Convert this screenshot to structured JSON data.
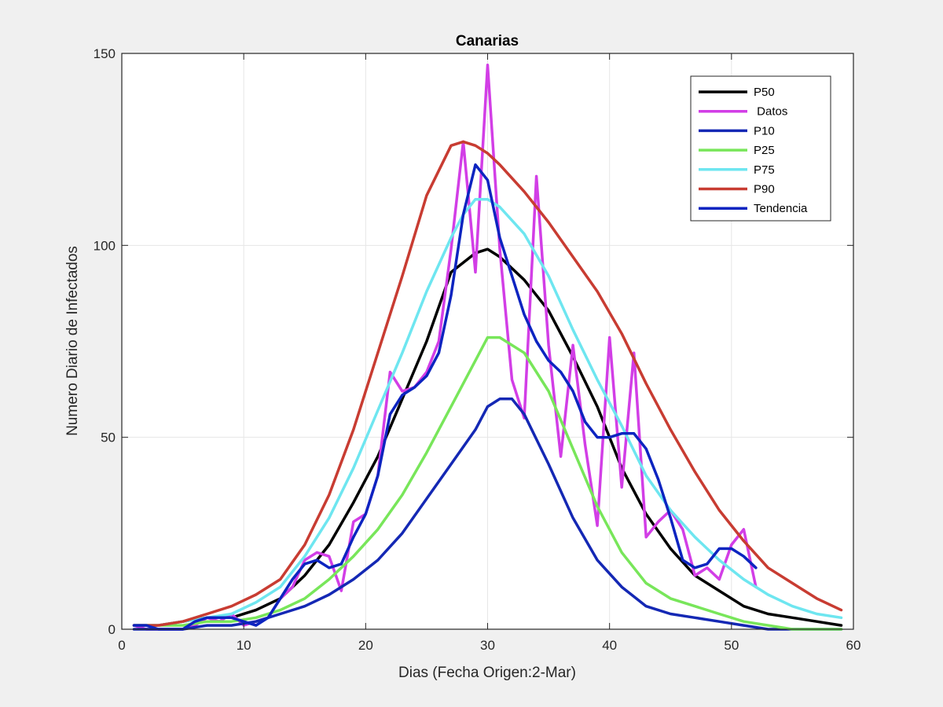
{
  "chart_data": {
    "type": "line",
    "title": "Canarias",
    "xlabel": "Dias (Fecha Origen:2-Mar)",
    "ylabel": "Numero Diario de Infectados",
    "xlim": [
      0,
      60
    ],
    "ylim": [
      0,
      150
    ],
    "xticks": [
      0,
      10,
      20,
      30,
      40,
      50,
      60
    ],
    "yticks": [
      0,
      50,
      100,
      150
    ],
    "xtick_labels": [
      "0",
      "10",
      "20",
      "30",
      "40",
      "50",
      "60"
    ],
    "ytick_labels": [
      "0",
      "50",
      "100",
      "150"
    ],
    "grid": true,
    "legend_position": "top-right",
    "series": [
      {
        "name": "P50",
        "color": "#000000",
        "x": [
          1,
          3,
          5,
          7,
          9,
          11,
          13,
          15,
          17,
          19,
          21,
          23,
          25,
          27,
          29,
          30,
          31,
          33,
          35,
          37,
          39,
          41,
          43,
          45,
          47,
          49,
          51,
          53,
          55,
          57,
          59
        ],
        "y": [
          1,
          1,
          2,
          3,
          3,
          5,
          8,
          14,
          22,
          33,
          45,
          60,
          75,
          93,
          98,
          99,
          97,
          91,
          83,
          71,
          58,
          42,
          30,
          21,
          14,
          10,
          6,
          4,
          3,
          2,
          1
        ]
      },
      {
        "name": "Datos",
        "color": "#d23ee6",
        "x": [
          1,
          2,
          3,
          4,
          5,
          6,
          7,
          8,
          9,
          10,
          11,
          12,
          13,
          14,
          15,
          16,
          17,
          18,
          19,
          20,
          21,
          22,
          23,
          24,
          25,
          26,
          27,
          28,
          29,
          30,
          31,
          32,
          33,
          34,
          35,
          36,
          37,
          38,
          39,
          40,
          41,
          42,
          43,
          44,
          45,
          46,
          47,
          48,
          49,
          50,
          51,
          52
        ],
        "y": [
          1,
          0,
          0,
          0,
          0,
          1,
          3,
          2,
          4,
          1,
          2,
          3,
          8,
          11,
          18,
          20,
          19,
          10,
          28,
          30,
          40,
          67,
          62,
          63,
          67,
          75,
          99,
          127,
          93,
          147,
          99,
          65,
          55,
          118,
          74,
          45,
          74,
          48,
          27,
          76,
          37,
          72,
          24,
          28,
          31,
          26,
          14,
          16,
          13,
          22,
          26,
          11
        ]
      },
      {
        "name": "P10",
        "color": "#1428b4",
        "x": [
          1,
          3,
          5,
          7,
          9,
          11,
          13,
          15,
          17,
          19,
          21,
          23,
          25,
          27,
          29,
          30,
          31,
          32,
          33,
          35,
          37,
          39,
          41,
          43,
          45,
          47,
          49,
          51,
          53,
          55,
          57,
          59
        ],
        "y": [
          0,
          0,
          0,
          1,
          1,
          2,
          4,
          6,
          9,
          13,
          18,
          25,
          34,
          43,
          52,
          58,
          60,
          60,
          56,
          43,
          29,
          18,
          11,
          6,
          4,
          3,
          2,
          1,
          0,
          0,
          0,
          0
        ]
      },
      {
        "name": "P25",
        "color": "#78e65a",
        "x": [
          1,
          3,
          5,
          7,
          9,
          11,
          13,
          15,
          17,
          19,
          21,
          23,
          25,
          27,
          29,
          30,
          31,
          33,
          35,
          37,
          39,
          41,
          43,
          45,
          47,
          49,
          51,
          53,
          55,
          57,
          59
        ],
        "y": [
          1,
          1,
          1,
          2,
          2,
          3,
          5,
          8,
          13,
          19,
          26,
          35,
          46,
          58,
          70,
          76,
          76,
          72,
          62,
          47,
          32,
          20,
          12,
          8,
          6,
          4,
          2,
          1,
          0,
          0,
          0
        ]
      },
      {
        "name": "P75",
        "color": "#6ee6f0",
        "x": [
          1,
          3,
          5,
          7,
          9,
          11,
          13,
          15,
          17,
          19,
          21,
          23,
          25,
          27,
          28,
          29,
          30,
          31,
          33,
          35,
          37,
          39,
          41,
          43,
          45,
          47,
          49,
          51,
          53,
          55,
          57,
          59
        ],
        "y": [
          1,
          1,
          2,
          3,
          4,
          7,
          11,
          19,
          29,
          42,
          57,
          72,
          88,
          102,
          108,
          112,
          112,
          110,
          103,
          92,
          78,
          65,
          53,
          40,
          31,
          24,
          18,
          13,
          9,
          6,
          4,
          3
        ]
      },
      {
        "name": "P90",
        "color": "#c83c32",
        "x": [
          1,
          3,
          5,
          7,
          9,
          11,
          13,
          15,
          17,
          19,
          21,
          23,
          25,
          27,
          28,
          29,
          30,
          31,
          33,
          35,
          37,
          39,
          41,
          43,
          45,
          47,
          49,
          51,
          53,
          55,
          57,
          59
        ],
        "y": [
          1,
          1,
          2,
          4,
          6,
          9,
          13,
          22,
          35,
          52,
          72,
          92,
          113,
          126,
          127,
          126,
          124,
          121,
          114,
          106,
          97,
          88,
          77,
          64,
          52,
          41,
          31,
          23,
          16,
          12,
          8,
          5
        ]
      },
      {
        "name": "Tendencia",
        "color": "#0c24c0",
        "x": [
          1,
          2,
          3,
          4,
          5,
          6,
          7,
          8,
          9,
          10,
          11,
          12,
          13,
          14,
          15,
          16,
          17,
          18,
          19,
          20,
          21,
          22,
          23,
          24,
          25,
          26,
          27,
          28,
          29,
          30,
          31,
          32,
          33,
          34,
          35,
          36,
          37,
          38,
          39,
          40,
          41,
          42,
          43,
          44,
          45,
          46,
          47,
          48,
          49,
          50,
          51,
          52
        ],
        "y": [
          1,
          1,
          0,
          0,
          0,
          2,
          3,
          3,
          3,
          2,
          1,
          3,
          8,
          13,
          17,
          18,
          16,
          17,
          24,
          30,
          40,
          56,
          61,
          63,
          66,
          72,
          87,
          108,
          121,
          117,
          102,
          92,
          82,
          75,
          70,
          67,
          62,
          54,
          50,
          50,
          51,
          51,
          47,
          39,
          29,
          18,
          16,
          17,
          21,
          21,
          19,
          16
        ]
      }
    ]
  }
}
